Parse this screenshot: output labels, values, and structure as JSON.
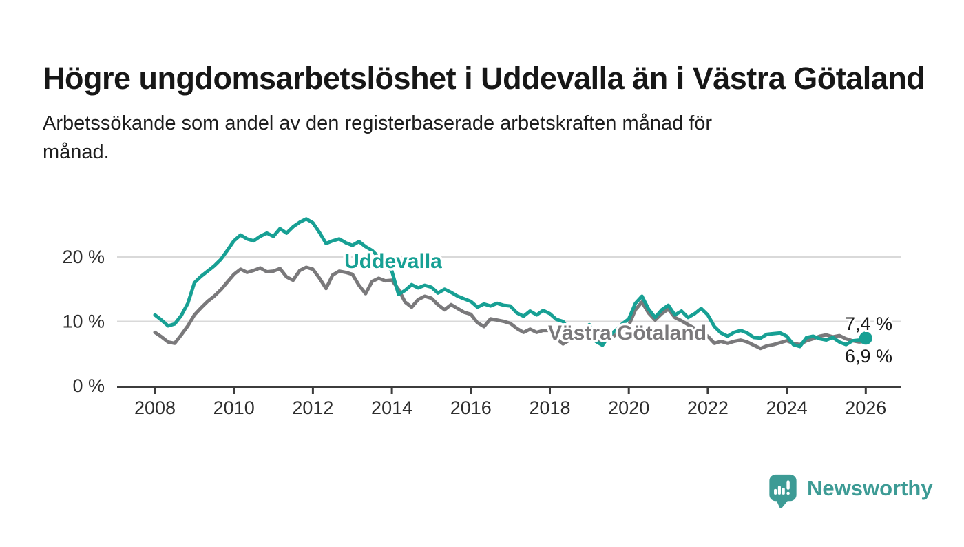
{
  "header": {
    "title": "Högre ungdomsarbetslöshet i Uddevalla än i Västra Götaland",
    "subtitle_lines": [
      "Arbetssökande som andel av den registerbaserade arbetskraften månad för",
      "månad."
    ]
  },
  "chart_data": {
    "type": "line",
    "title": "Högre ungdomsarbetslöshet i Uddevalla än i Västra Götaland",
    "subtitle": "Arbetssökande som andel av den registerbaserade arbetskraften månad för månad.",
    "xlabel": "",
    "ylabel": "",
    "x_start_year": 2008,
    "x_end_year": 2026,
    "points_per_year": 6,
    "x_tick_labels": [
      "2008",
      "2010",
      "2012",
      "2014",
      "2016",
      "2018",
      "2020",
      "2022",
      "2024",
      "2026"
    ],
    "y_ticks": [
      {
        "value": 0,
        "label": "0 %"
      },
      {
        "value": 10,
        "label": "10 %"
      },
      {
        "value": 20,
        "label": "20 %"
      }
    ],
    "ylim": [
      0,
      27.5
    ],
    "grid": "horizontal",
    "legend_position": "inline-labels",
    "series": [
      {
        "name": "Västra Götaland",
        "color": "#7a797b",
        "end_label": "6,9 %",
        "end_value": 6.9,
        "end_dot": false,
        "values": [
          8.3,
          7.6,
          6.8,
          6.6,
          7.9,
          9.3,
          11.0,
          12.1,
          13.1,
          13.9,
          14.9,
          16.1,
          17.3,
          18.1,
          17.6,
          17.9,
          18.3,
          17.7,
          17.8,
          18.2,
          16.9,
          16.4,
          17.9,
          18.4,
          18.1,
          16.7,
          15.1,
          17.2,
          17.8,
          17.6,
          17.3,
          15.6,
          14.3,
          16.2,
          16.7,
          16.3,
          16.4,
          15.0,
          13.0,
          12.2,
          13.4,
          13.9,
          13.6,
          12.6,
          11.8,
          12.6,
          12.0,
          11.4,
          11.1,
          9.8,
          9.2,
          10.4,
          10.2,
          10.0,
          9.7,
          8.9,
          8.3,
          8.8,
          8.3,
          8.6,
          8.6,
          7.3,
          6.5,
          7.1,
          7.7,
          7.3,
          7.9,
          7.1,
          6.7,
          7.3,
          7.9,
          8.5,
          9.4,
          11.8,
          13.0,
          11.3,
          10.2,
          11.2,
          11.9,
          10.6,
          10.1,
          9.5,
          8.9,
          8.3,
          7.7,
          6.6,
          6.9,
          6.6,
          6.9,
          7.1,
          6.8,
          6.3,
          5.8,
          6.2,
          6.4,
          6.7,
          7.0,
          6.6,
          6.4,
          7.0,
          7.3,
          7.7,
          7.9,
          7.6,
          7.8,
          7.3,
          7.0,
          6.8,
          6.9
        ]
      },
      {
        "name": "Uddevalla",
        "color": "#17a094",
        "end_label": "7,4 %",
        "end_value": 7.4,
        "end_dot": true,
        "values": [
          11.0,
          10.2,
          9.3,
          9.6,
          10.9,
          12.8,
          16.0,
          17.0,
          17.8,
          18.6,
          19.6,
          21.0,
          22.5,
          23.4,
          22.8,
          22.5,
          23.2,
          23.7,
          23.2,
          24.4,
          23.7,
          24.7,
          25.4,
          25.9,
          25.3,
          23.8,
          22.1,
          22.5,
          22.8,
          22.2,
          21.8,
          22.4,
          21.6,
          21.0,
          20.0,
          18.9,
          17.8,
          14.2,
          14.8,
          15.7,
          15.2,
          15.6,
          15.3,
          14.4,
          15.0,
          14.5,
          13.9,
          13.5,
          13.1,
          12.2,
          12.7,
          12.4,
          12.8,
          12.5,
          12.4,
          11.3,
          10.8,
          11.6,
          11.0,
          11.7,
          11.2,
          10.3,
          10.0,
          8.6,
          7.3,
          8.6,
          9.5,
          6.9,
          6.3,
          7.8,
          8.6,
          9.6,
          10.4,
          12.8,
          13.9,
          11.9,
          10.6,
          11.8,
          12.5,
          11.0,
          11.6,
          10.6,
          11.2,
          12.0,
          11.0,
          9.2,
          8.2,
          7.7,
          8.3,
          8.6,
          8.2,
          7.5,
          7.4,
          8.0,
          8.1,
          8.2,
          7.7,
          6.4,
          6.1,
          7.5,
          7.7,
          7.3,
          7.1,
          7.5,
          6.8,
          6.4,
          7.0,
          7.1,
          7.4
        ]
      }
    ]
  },
  "footer": {
    "brand_name": "Newsworthy",
    "logo_icon": "speech-bubble-bar-chart-icon"
  },
  "colors": {
    "background": "#ffffff",
    "uddevalla_line": "#17a094",
    "vastra_gotaland_line": "#7a797b",
    "grid": "#d9d9d9",
    "axis": "#3c3c3c",
    "tick_text": "#2e2e2e",
    "title_text": "#171717",
    "brand_teal": "#3d9b95"
  }
}
